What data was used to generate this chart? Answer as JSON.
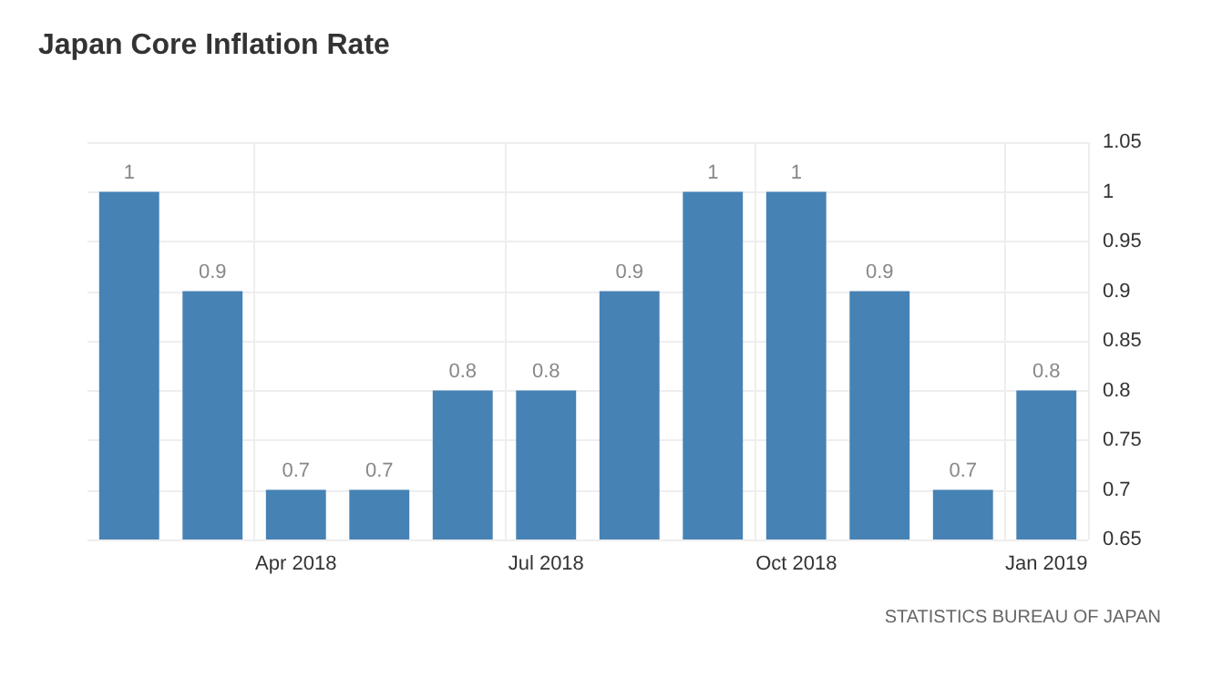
{
  "chart_data": {
    "type": "bar",
    "title": "Japan Core Inflation Rate",
    "categories": [
      null,
      null,
      "Apr 2018",
      null,
      null,
      "Jul 2018",
      null,
      null,
      "Oct 2018",
      null,
      null,
      "Jan 2019"
    ],
    "values": [
      1,
      0.9,
      0.7,
      0.7,
      0.8,
      0.8,
      0.9,
      1,
      1,
      0.9,
      0.7,
      0.8
    ],
    "color": "#4682b4",
    "ylim": [
      0.65,
      1.05
    ],
    "yticks": [
      0.65,
      0.7,
      0.75,
      0.8,
      0.85,
      0.9,
      0.95,
      1,
      1.05
    ],
    "grid": true,
    "data_labels": true,
    "annotations": [
      "STATISTICS BUREAU OF JAPAN"
    ]
  }
}
